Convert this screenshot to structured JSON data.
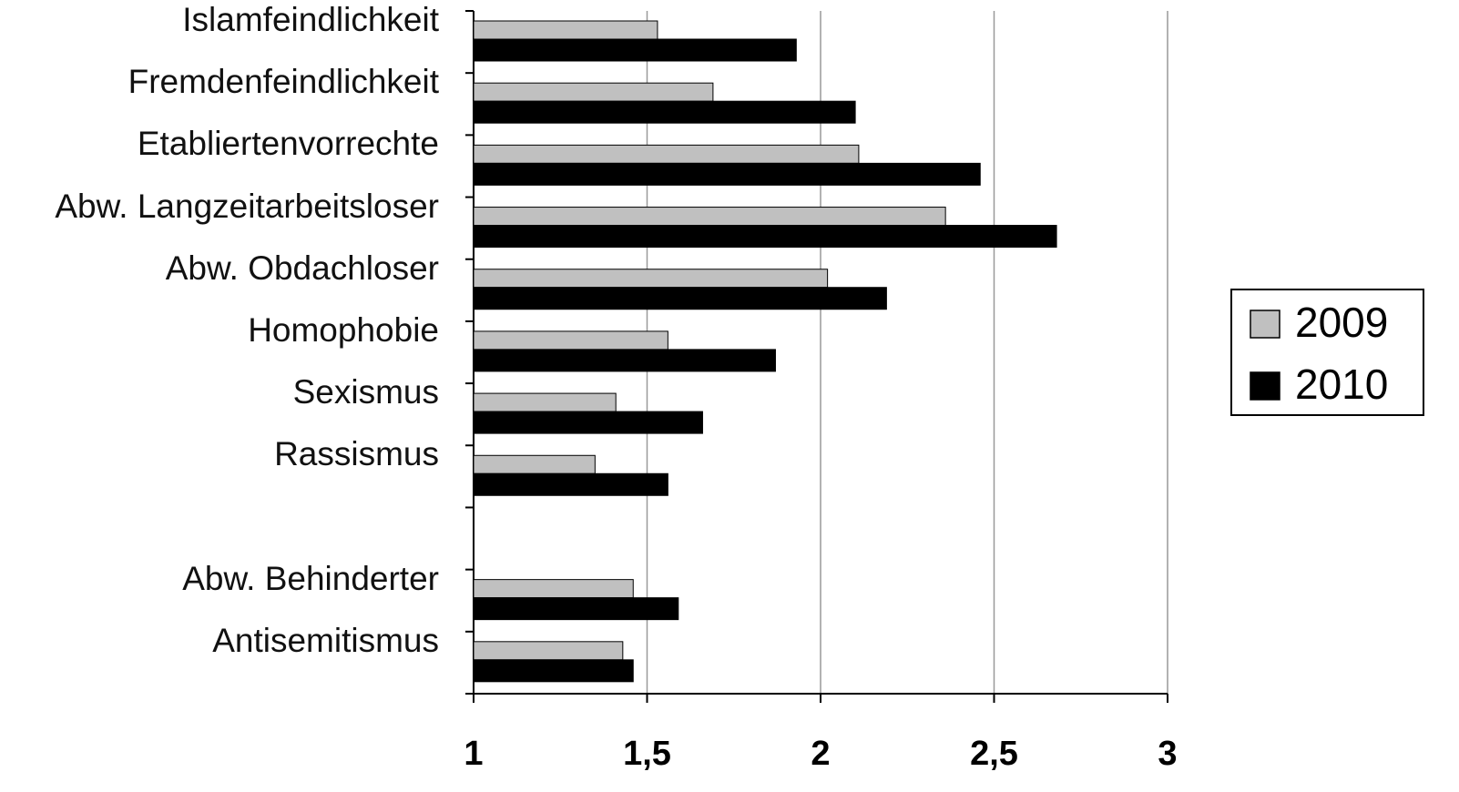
{
  "chart_data": {
    "type": "barh",
    "categories": [
      "Islamfeindlichkeit",
      "Fremdenfeindlichkeit",
      "Etabliertenvorrechte",
      "Abw. Langzeitarbeitsloser",
      "Abw. Obdachloser",
      "Homophobie",
      "Sexismus",
      "Rassismus",
      null,
      "Abw. Behinderter",
      "Antisemitismus"
    ],
    "series": [
      {
        "name": "2009",
        "color": "#c0c0c0",
        "values": [
          1.53,
          1.69,
          2.11,
          2.36,
          2.02,
          1.56,
          1.41,
          1.35,
          null,
          1.46,
          1.43
        ]
      },
      {
        "name": "2010",
        "color": "#000000",
        "values": [
          1.93,
          2.1,
          2.46,
          2.68,
          2.19,
          1.87,
          1.66,
          1.56,
          null,
          1.59,
          1.46
        ]
      }
    ],
    "xlim": [
      1,
      3
    ],
    "xticks": [
      1,
      {
        "value": 1.5,
        "label": "1,5"
      },
      2,
      {
        "value": 2.5,
        "label": "2,5"
      },
      3
    ],
    "grid": true,
    "legend": "right"
  }
}
